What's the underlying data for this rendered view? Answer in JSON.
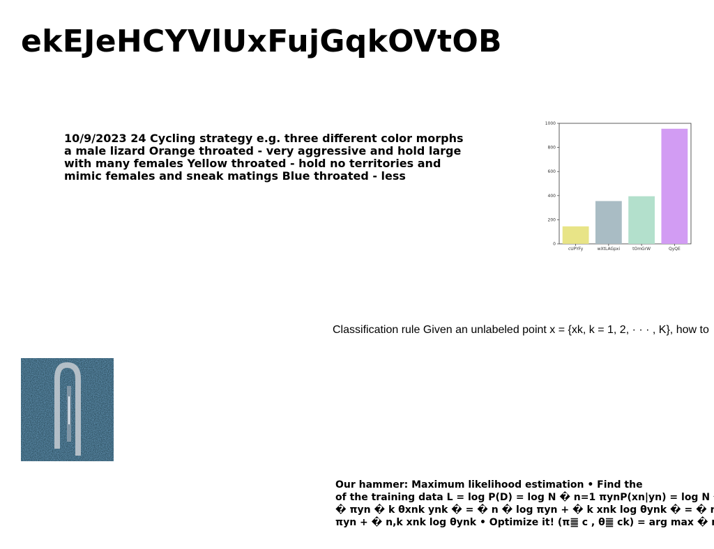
{
  "title": "ekEJeHCYVlUxFujGqkOVtOB",
  "para1": [
    "10/9/2023 24 Cycling strategy e.g. three different color morphs",
    "a male lizard Orange throated - very aggressive and hold large",
    "with many females Yellow throated - hold no territories and",
    "mimic females and sneak matings Blue throated - less"
  ],
  "para2": "Classification rule Given an unlabeled point x = {xk, k = 1, 2, · · · , K}, how to",
  "para3": [
    "Our hammer: Maximum likelihood estimation • Find the",
    "of the training data L = log P(D) = log N � n=1 πynP(xn|yn) = log N �",
    "� πyn � k θxnk ynk � = � n � log πyn + � k xnk log θynk � = � n",
    "πyn + � n,k xnk log θynk • Optimize it! (π䷀ c , θ䷀ ck) = arg max � n"
  ],
  "chart_data": {
    "type": "bar",
    "categories": [
      "cUPYFy",
      "wXtLAGpxi",
      "tOmGrW",
      "QyQE"
    ],
    "values": [
      145,
      355,
      395,
      955
    ],
    "colors": [
      "#e8e487",
      "#a9bcc4",
      "#b3e0cc",
      "#d29cf3"
    ],
    "yticks": [
      0,
      200,
      400,
      600,
      800,
      1000
    ],
    "ylim": [
      0,
      1000
    ],
    "title": "",
    "xlabel": "",
    "ylabel": ""
  },
  "photo": {
    "description_icon": "aerial-satellite-image"
  }
}
